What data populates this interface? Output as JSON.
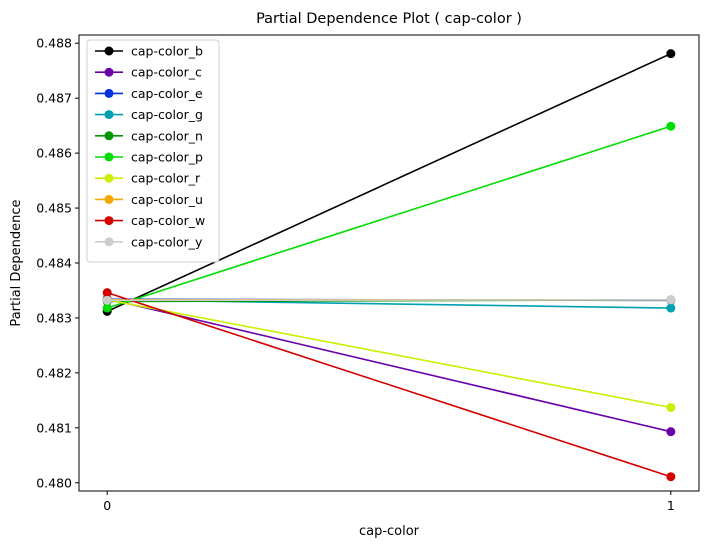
{
  "chart_data": {
    "type": "line",
    "title": "Partial Dependence Plot ( cap-color )",
    "xlabel": "cap-color",
    "ylabel": "Partial Dependence",
    "x": [
      0,
      1
    ],
    "x_tick_labels": [
      "0",
      "1"
    ],
    "y_ticks": [
      0.48,
      0.481,
      0.482,
      0.483,
      0.484,
      0.485,
      0.486,
      0.487,
      0.488
    ],
    "y_tick_labels": [
      "0.480",
      "0.481",
      "0.482",
      "0.483",
      "0.484",
      "0.485",
      "0.486",
      "0.487",
      "0.488"
    ],
    "xlim": [
      -0.05,
      1.05
    ],
    "ylim": [
      0.47985,
      0.48815
    ],
    "grid": false,
    "legend_position": "top-left",
    "series": [
      {
        "name": "cap-color_b",
        "color": "#000000",
        "values": [
          0.48312,
          0.48781
        ]
      },
      {
        "name": "cap-color_c",
        "color": "#6a00a8",
        "values": [
          0.48335,
          0.48093
        ]
      },
      {
        "name": "cap-color_e",
        "color": "#0033dd",
        "values": [
          0.48334,
          0.48332
        ]
      },
      {
        "name": "cap-color_g",
        "color": "#00a0b0",
        "values": [
          0.48333,
          0.48318
        ]
      },
      {
        "name": "cap-color_n",
        "color": "#009900",
        "values": [
          0.4833,
          0.48333
        ]
      },
      {
        "name": "cap-color_p",
        "color": "#00dd00",
        "values": [
          0.48318,
          0.48649
        ]
      },
      {
        "name": "cap-color_r",
        "color": "#ccee00",
        "values": [
          0.48333,
          0.48137
        ]
      },
      {
        "name": "cap-color_u",
        "color": "#f5a800",
        "values": [
          0.48333,
          0.48333
        ]
      },
      {
        "name": "cap-color_w",
        "color": "#d40000",
        "values": [
          0.48346,
          0.48011
        ]
      },
      {
        "name": "cap-color_y",
        "color": "#cccccc",
        "values": [
          0.48332,
          0.48333
        ]
      }
    ]
  }
}
